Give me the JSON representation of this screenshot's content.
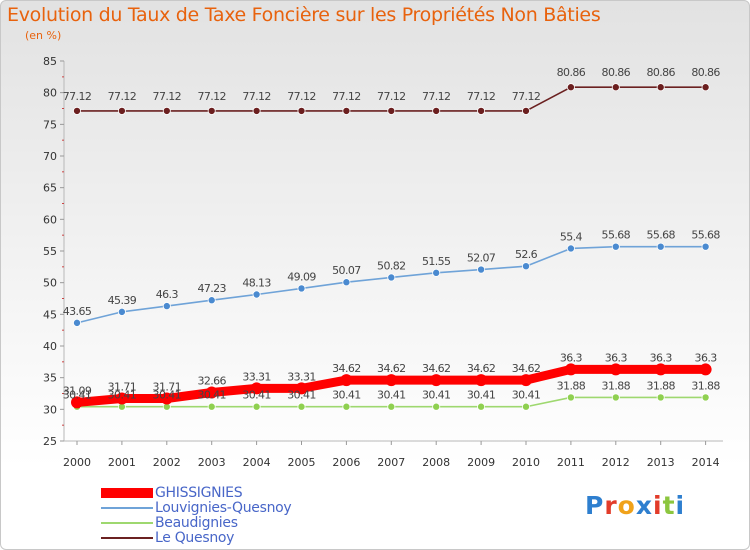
{
  "title": "Evolution du Taux de Taxe Foncière sur les Propriétés Non Bâties",
  "unit": "(en %)",
  "logo": [
    "P",
    "r",
    "o",
    "x",
    "i",
    "t",
    "i"
  ],
  "chart_data": {
    "type": "line",
    "title": "Evolution du Taux de Taxe Foncière sur les Propriétés Non Bâties",
    "ylabel": "(en %)",
    "xlabel": "",
    "ylim": [
      25,
      85
    ],
    "yticks": [
      25,
      30,
      35,
      40,
      45,
      50,
      55,
      60,
      65,
      70,
      75,
      80,
      85
    ],
    "grid": "none",
    "legend_position": "bottom-left",
    "x": [
      "2000",
      "2001",
      "2002",
      "2003",
      "2004",
      "2005",
      "2006",
      "2007",
      "2008",
      "2009",
      "2010",
      "2011",
      "2012",
      "2013",
      "2014"
    ],
    "series": [
      {
        "name": "GHISSIGNIES",
        "color": "#ff0000",
        "values": [
          31.09,
          31.71,
          31.71,
          32.66,
          33.31,
          33.31,
          34.62,
          34.62,
          34.62,
          34.62,
          34.62,
          36.3,
          36.3,
          36.3,
          36.3
        ],
        "labels": [
          "31.09",
          "31.71",
          "31.71",
          "32.66",
          "33.31",
          "33.31",
          "34.62",
          "34.62",
          "34.62",
          "34.62",
          "34.62",
          "36.3",
          "36.3",
          "36.3",
          "36.3"
        ]
      },
      {
        "name": "Louvignies-Quesnoy",
        "color": "#6fa3d8",
        "values": [
          43.65,
          45.39,
          46.3,
          47.23,
          48.13,
          49.09,
          50.07,
          50.82,
          51.55,
          52.07,
          52.6,
          55.4,
          55.68,
          55.68,
          55.68
        ],
        "labels": [
          "43.65",
          "45.39",
          "46.3",
          "47.23",
          "48.13",
          "49.09",
          "50.07",
          "50.82",
          "51.55",
          "52.07",
          "52.6",
          "55.4",
          "55.68",
          "55.68",
          "55.68"
        ]
      },
      {
        "name": "Beaudignies",
        "color": "#9ed86f",
        "values": [
          30.41,
          30.41,
          30.41,
          30.41,
          30.41,
          30.41,
          30.41,
          30.41,
          30.41,
          30.41,
          30.41,
          31.88,
          31.88,
          31.88,
          31.88
        ],
        "labels": [
          "30.41",
          "30.41",
          "30.41",
          "30.41",
          "30.41",
          "30.41",
          "30.41",
          "30.41",
          "30.41",
          "30.41",
          "30.41",
          "31.88",
          "31.88",
          "31.88",
          "31.88"
        ]
      },
      {
        "name": "Le Quesnoy",
        "color": "#6b2121",
        "values": [
          77.12,
          77.12,
          77.12,
          77.12,
          77.12,
          77.12,
          77.12,
          77.12,
          77.12,
          77.12,
          77.12,
          80.86,
          80.86,
          80.86,
          80.86
        ],
        "labels": [
          "77.12",
          "77.12",
          "77.12",
          "77.12",
          "77.12",
          "77.12",
          "77.12",
          "77.12",
          "77.12",
          "77.12",
          "77.12",
          "80.86",
          "80.86",
          "80.86",
          "80.86"
        ]
      }
    ]
  }
}
